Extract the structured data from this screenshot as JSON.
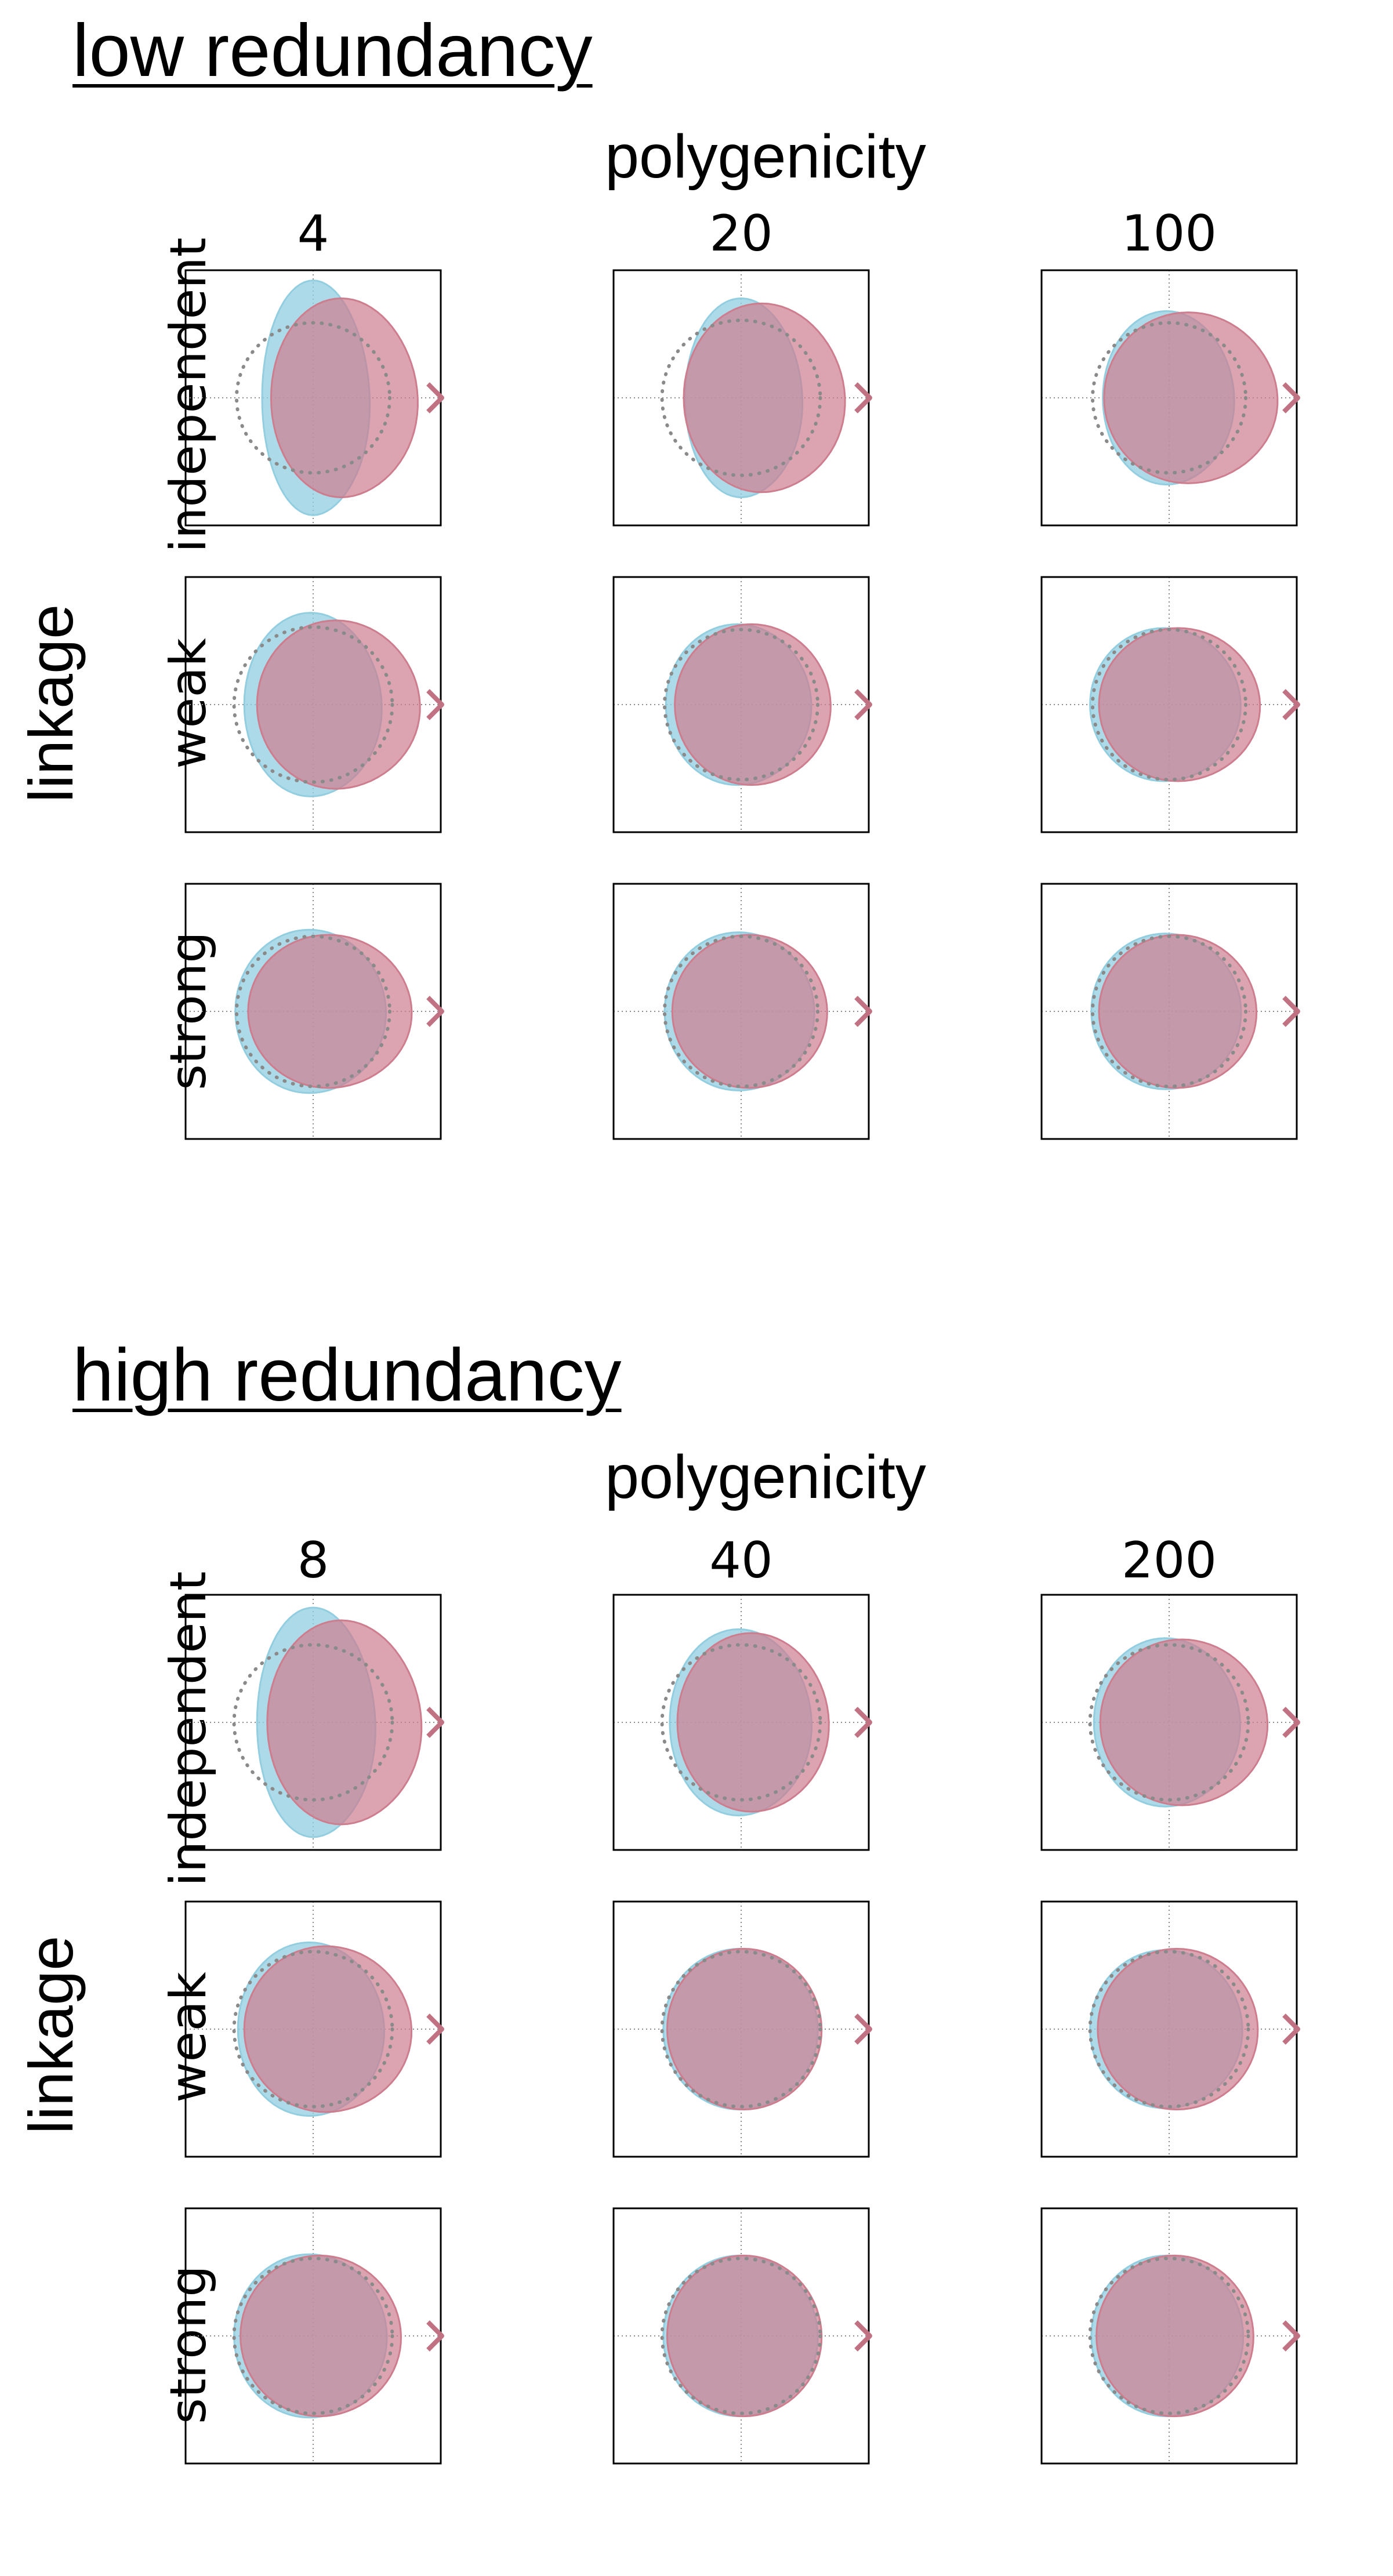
{
  "colors": {
    "blue": "#92cee0",
    "red": "#cd7d8e",
    "overlap": "#b39098",
    "dotted": "#8a8a8a",
    "arrow": "#c07283"
  },
  "chart_data": [
    {
      "type": "area",
      "title": "low redundancy",
      "column_axis_label": "polygenicity",
      "row_axis_label": "linkage",
      "columns": [
        "4",
        "20",
        "100"
      ],
      "rows": [
        "independent",
        "weak",
        "strong"
      ],
      "axis_range": [
        -1,
        1
      ],
      "grid": "crosshair at 0",
      "legend": "none",
      "panels": [
        [
          {
            "blue": {
              "cx": 0.0,
              "rx": 0.4,
              "ry": 0.92,
              "skew": 0.18
            },
            "red": {
              "cx": 0.22,
              "rx": 0.55,
              "ry": 0.78,
              "skew": 0.15
            },
            "ref_circle_r": 0.6
          },
          {
            "blue": {
              "cx": 0.0,
              "rx": 0.44,
              "ry": 0.78,
              "skew": 0.15
            },
            "red": {
              "cx": 0.16,
              "rx": 0.61,
              "ry": 0.74,
              "skew": 0.12
            },
            "ref_circle_r": 0.62
          },
          {
            "blue": {
              "cx": -0.02,
              "rx": 0.5,
              "ry": 0.68,
              "skew": 0.1
            },
            "red": {
              "cx": 0.15,
              "rx": 0.66,
              "ry": 0.67,
              "skew": 0.1
            },
            "ref_circle_r": 0.6
          }
        ],
        [
          {
            "blue": {
              "cx": -0.02,
              "rx": 0.52,
              "ry": 0.72,
              "skew": 0.12
            },
            "red": {
              "cx": 0.18,
              "rx": 0.62,
              "ry": 0.66,
              "skew": 0.1
            },
            "ref_circle_r": 0.62
          },
          {
            "blue": {
              "cx": -0.03,
              "rx": 0.56,
              "ry": 0.63,
              "skew": 0.06
            },
            "red": {
              "cx": 0.08,
              "rx": 0.6,
              "ry": 0.63,
              "skew": 0.06
            },
            "ref_circle_r": 0.6
          },
          {
            "blue": {
              "cx": -0.04,
              "rx": 0.58,
              "ry": 0.6,
              "skew": 0.06
            },
            "red": {
              "cx": 0.07,
              "rx": 0.62,
              "ry": 0.6,
              "skew": 0.06
            },
            "ref_circle_r": 0.6
          }
        ],
        [
          {
            "blue": {
              "cx": -0.03,
              "rx": 0.58,
              "ry": 0.64,
              "skew": 0.06
            },
            "red": {
              "cx": 0.12,
              "rx": 0.63,
              "ry": 0.6,
              "skew": 0.06
            },
            "ref_circle_r": 0.6
          },
          {
            "blue": {
              "cx": -0.02,
              "rx": 0.58,
              "ry": 0.62,
              "skew": 0.04
            },
            "red": {
              "cx": 0.06,
              "rx": 0.6,
              "ry": 0.6,
              "skew": 0.04
            },
            "ref_circle_r": 0.6
          },
          {
            "blue": {
              "cx": -0.03,
              "rx": 0.58,
              "ry": 0.61,
              "skew": 0.04
            },
            "red": {
              "cx": 0.06,
              "rx": 0.61,
              "ry": 0.6,
              "skew": 0.04
            },
            "ref_circle_r": 0.6
          }
        ]
      ]
    },
    {
      "type": "area",
      "title": "high redundancy",
      "column_axis_label": "polygenicity",
      "row_axis_label": "linkage",
      "columns": [
        "8",
        "40",
        "200"
      ],
      "rows": [
        "independent",
        "weak",
        "strong"
      ],
      "axis_range": [
        -1,
        1
      ],
      "grid": "crosshair at 0",
      "legend": "none",
      "panels": [
        [
          {
            "blue": {
              "cx": 0.0,
              "rx": 0.44,
              "ry": 0.9,
              "skew": 0.18
            },
            "red": {
              "cx": 0.22,
              "rx": 0.58,
              "ry": 0.8,
              "skew": 0.14
            },
            "ref_circle_r": 0.62
          },
          {
            "blue": {
              "cx": -0.02,
              "rx": 0.54,
              "ry": 0.73,
              "skew": 0.1
            },
            "red": {
              "cx": 0.08,
              "rx": 0.58,
              "ry": 0.7,
              "skew": 0.08
            },
            "ref_circle_r": 0.62
          },
          {
            "blue": {
              "cx": -0.03,
              "rx": 0.56,
              "ry": 0.66,
              "skew": 0.08
            },
            "red": {
              "cx": 0.1,
              "rx": 0.64,
              "ry": 0.65,
              "skew": 0.08
            },
            "ref_circle_r": 0.62
          }
        ],
        [
          {
            "blue": {
              "cx": -0.03,
              "rx": 0.56,
              "ry": 0.68,
              "skew": 0.08
            },
            "red": {
              "cx": 0.1,
              "rx": 0.64,
              "ry": 0.65,
              "skew": 0.08
            },
            "ref_circle_r": 0.62
          },
          {
            "blue": {
              "cx": -0.01,
              "rx": 0.6,
              "ry": 0.63,
              "skew": 0.03
            },
            "red": {
              "cx": 0.02,
              "rx": 0.6,
              "ry": 0.63,
              "skew": 0.03
            },
            "ref_circle_r": 0.62
          },
          {
            "blue": {
              "cx": -0.03,
              "rx": 0.59,
              "ry": 0.62,
              "skew": 0.04
            },
            "red": {
              "cx": 0.06,
              "rx": 0.62,
              "ry": 0.63,
              "skew": 0.04
            },
            "ref_circle_r": 0.62
          }
        ],
        [
          {
            "blue": {
              "cx": -0.03,
              "rx": 0.59,
              "ry": 0.64,
              "skew": 0.05
            },
            "red": {
              "cx": 0.05,
              "rx": 0.62,
              "ry": 0.63,
              "skew": 0.05
            },
            "ref_circle_r": 0.62
          },
          {
            "blue": {
              "cx": -0.01,
              "rx": 0.6,
              "ry": 0.63,
              "skew": 0.03
            },
            "red": {
              "cx": 0.02,
              "rx": 0.6,
              "ry": 0.63,
              "skew": 0.03
            },
            "ref_circle_r": 0.62
          },
          {
            "blue": {
              "cx": -0.02,
              "rx": 0.59,
              "ry": 0.63,
              "skew": 0.03
            },
            "red": {
              "cx": 0.04,
              "rx": 0.61,
              "ry": 0.63,
              "skew": 0.03
            },
            "ref_circle_r": 0.62
          }
        ]
      ]
    }
  ]
}
